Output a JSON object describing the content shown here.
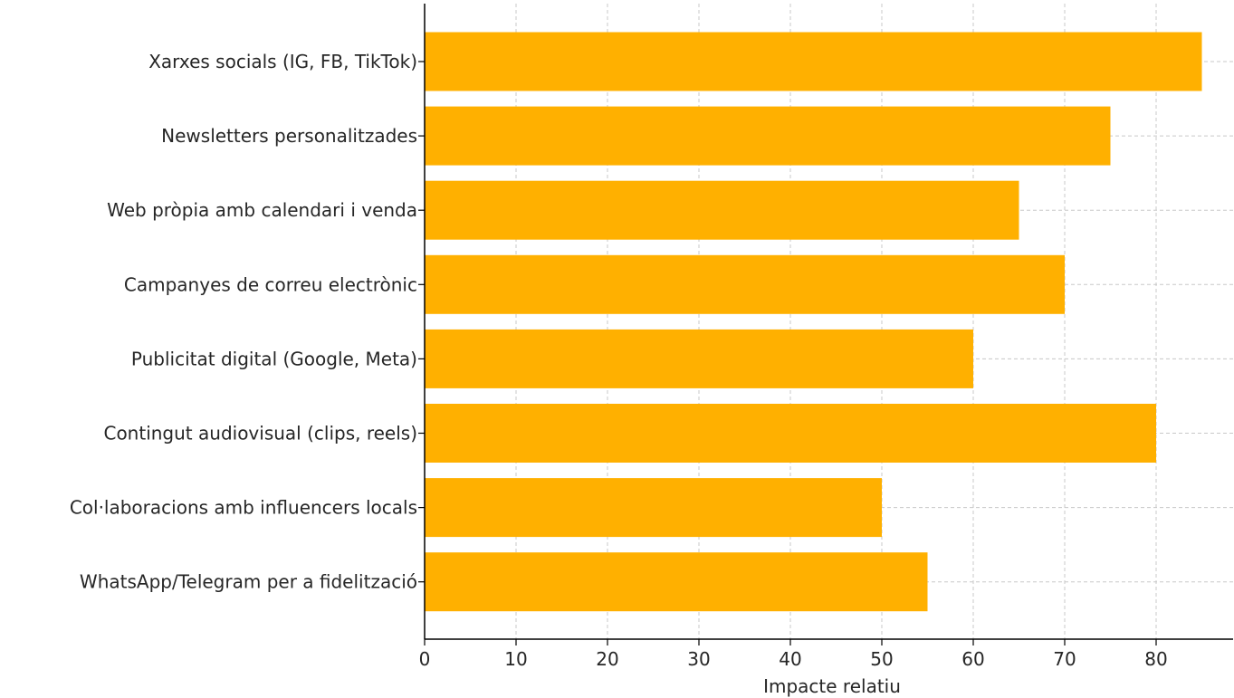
{
  "chart_data": {
    "type": "bar",
    "orientation": "horizontal",
    "categories": [
      "Xarxes socials (IG, FB, TikTok)",
      "Newsletters personalitzades",
      "Web pròpia amb calendari i venda",
      "Campanyes de correu electrònic",
      "Publicitat digital (Google, Meta)",
      "Contingut audiovisual (clips, reels)",
      "Col·laboracions amb influencers locals",
      "WhatsApp/Telegram per a fidelització"
    ],
    "values": [
      85,
      75,
      65,
      70,
      60,
      80,
      50,
      55
    ],
    "xlabel": "Impacte relatiu",
    "ylabel": "",
    "title": "",
    "xlim": [
      0,
      88
    ],
    "xticks": [
      "0",
      "10",
      "20",
      "30",
      "40",
      "50",
      "60",
      "70",
      "80"
    ],
    "grid": true,
    "bar_color": "#FFB000"
  }
}
